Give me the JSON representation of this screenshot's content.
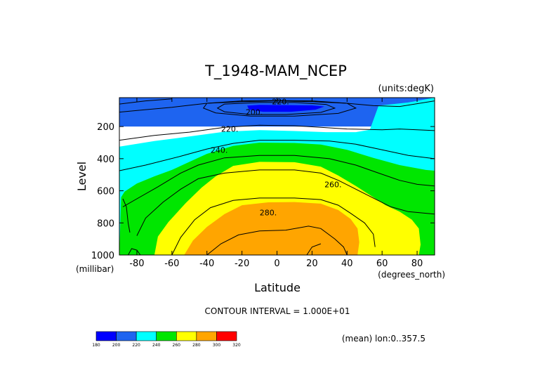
{
  "chart_data": {
    "type": "contour",
    "title": "T_1948-MAM_NCEP",
    "units_label": "(units:degK)",
    "xlabel": "Latitude",
    "ylabel": "Level",
    "x_unit_label": "(degrees_north)",
    "y_unit_label": "(millibar)",
    "xlim": [
      -90,
      90
    ],
    "ylim": [
      1000,
      20
    ],
    "y_inverted": true,
    "x_ticks": [
      -80,
      -60,
      -40,
      -20,
      0,
      20,
      40,
      60,
      80
    ],
    "x_tick_labels": [
      "-80",
      "-60",
      "-40",
      "-20",
      "0",
      "20",
      "40",
      "60",
      "80"
    ],
    "y_ticks": [
      200,
      400,
      600,
      800,
      1000
    ],
    "y_tick_labels": [
      "200",
      "400",
      "600",
      "800",
      "1000"
    ],
    "contour_interval_text": "CONTOUR INTERVAL = 1.000E+01",
    "footer_text": "(mean) lon:0..357.5",
    "contour_labels": [
      {
        "text": "220.",
        "lat": 2,
        "lev": 45
      },
      {
        "text": "200.",
        "lat": -13,
        "lev": 110
      },
      {
        "text": "220.",
        "lat": -27,
        "lev": 215
      },
      {
        "text": "240.",
        "lat": -33,
        "lev": 345
      },
      {
        "text": "260.",
        "lat": 32,
        "lev": 560
      },
      {
        "text": "280.",
        "lat": -5,
        "lev": 735
      }
    ],
    "colorbar": {
      "levels": [
        "180",
        "200",
        "220",
        "240",
        "260",
        "280",
        "300",
        "320"
      ],
      "colors": [
        "#0000ff",
        "#1e64f0",
        "#00ffff",
        "#00e600",
        "#ffff00",
        "#ffa500",
        "#ff0000"
      ]
    },
    "bands": [
      {
        "level": 200,
        "color": "#1e64f0",
        "points": [
          [
            -90,
            20
          ],
          [
            90,
            20
          ],
          [
            90,
            200
          ],
          [
            -90,
            200
          ]
        ]
      },
      {
        "level": 190,
        "color": "#0000ff",
        "points": [
          [
            -17,
            70
          ],
          [
            -10,
            65
          ],
          [
            20,
            68
          ],
          [
            27,
            75
          ],
          [
            22,
            95
          ],
          [
            8,
            108
          ],
          [
            -8,
            108
          ],
          [
            -16,
            95
          ]
        ]
      },
      {
        "level": 220,
        "color": "#00ffff",
        "points": [
          [
            -90,
            325
          ],
          [
            -70,
            290
          ],
          [
            -50,
            262
          ],
          [
            -30,
            232
          ],
          [
            -10,
            222
          ],
          [
            10,
            228
          ],
          [
            28,
            235
          ],
          [
            45,
            235
          ],
          [
            53,
            220
          ],
          [
            58,
            70
          ],
          [
            75,
            50
          ],
          [
            90,
            20
          ],
          [
            90,
            1000
          ],
          [
            -90,
            1000
          ]
        ]
      },
      {
        "level": 240,
        "color": "#00e600",
        "points": [
          [
            -90,
            1000
          ],
          [
            -89,
            640
          ],
          [
            -87,
            605
          ],
          [
            -80,
            555
          ],
          [
            -70,
            510
          ],
          [
            -60,
            470
          ],
          [
            -50,
            420
          ],
          [
            -40,
            370
          ],
          [
            -25,
            320
          ],
          [
            -10,
            300
          ],
          [
            10,
            302
          ],
          [
            25,
            312
          ],
          [
            40,
            345
          ],
          [
            55,
            395
          ],
          [
            70,
            440
          ],
          [
            85,
            470
          ],
          [
            90,
            475
          ],
          [
            90,
            1000
          ]
        ]
      },
      {
        "level": 260,
        "color": "#ffff00",
        "points": [
          [
            -70,
            1000
          ],
          [
            -68,
            885
          ],
          [
            -62,
            795
          ],
          [
            -52,
            675
          ],
          [
            -43,
            580
          ],
          [
            -35,
            510
          ],
          [
            -25,
            445
          ],
          [
            -10,
            420
          ],
          [
            10,
            422
          ],
          [
            25,
            450
          ],
          [
            35,
            505
          ],
          [
            45,
            570
          ],
          [
            55,
            640
          ],
          [
            62,
            690
          ],
          [
            70,
            730
          ],
          [
            77,
            780
          ],
          [
            81,
            835
          ],
          [
            82,
            935
          ],
          [
            81,
            1000
          ]
        ]
      },
      {
        "level": 270,
        "color": "#ffa500",
        "points": [
          [
            -53,
            1000
          ],
          [
            -48,
            910
          ],
          [
            -40,
            825
          ],
          [
            -30,
            745
          ],
          [
            -20,
            690
          ],
          [
            -5,
            672
          ],
          [
            10,
            670
          ],
          [
            25,
            680
          ],
          [
            35,
            720
          ],
          [
            42,
            775
          ],
          [
            46,
            835
          ],
          [
            47,
            920
          ],
          [
            46,
            1000
          ]
        ]
      }
    ],
    "lines": [
      {
        "level": 230,
        "points": [
          [
            -90,
            285
          ],
          [
            -70,
            255
          ],
          [
            -50,
            235
          ],
          [
            -30,
            205
          ],
          [
            -10,
            192
          ],
          [
            10,
            195
          ],
          [
            25,
            205
          ],
          [
            40,
            215
          ],
          [
            60,
            220
          ],
          [
            70,
            215
          ],
          [
            90,
            225
          ]
        ]
      },
      {
        "level": 230,
        "points": [
          [
            -90,
            475
          ],
          [
            -75,
            440
          ],
          [
            -55,
            385
          ],
          [
            -40,
            340
          ],
          [
            -25,
            305
          ],
          [
            -10,
            285
          ],
          [
            10,
            285
          ],
          [
            30,
            290
          ],
          [
            45,
            310
          ],
          [
            60,
            345
          ],
          [
            75,
            380
          ],
          [
            90,
            400
          ]
        ]
      },
      {
        "level": 250,
        "points": [
          [
            -88,
            700
          ],
          [
            -80,
            650
          ],
          [
            -68,
            575
          ],
          [
            -55,
            490
          ],
          [
            -45,
            440
          ],
          [
            -30,
            395
          ],
          [
            -10,
            380
          ],
          [
            10,
            380
          ],
          [
            30,
            400
          ],
          [
            45,
            440
          ],
          [
            58,
            490
          ],
          [
            70,
            535
          ],
          [
            80,
            560
          ],
          [
            90,
            570
          ]
        ]
      },
      {
        "level": 260,
        "points": [
          [
            -80,
            880
          ],
          [
            -75,
            770
          ],
          [
            -65,
            670
          ],
          [
            -55,
            590
          ],
          [
            -45,
            525
          ],
          [
            -30,
            490
          ],
          [
            -10,
            470
          ],
          [
            10,
            470
          ],
          [
            25,
            490
          ],
          [
            35,
            535
          ],
          [
            45,
            590
          ],
          [
            55,
            645
          ],
          [
            65,
            700
          ],
          [
            75,
            730
          ],
          [
            90,
            745
          ]
        ]
      },
      {
        "level": 270,
        "points": [
          [
            -60,
            1000
          ],
          [
            -55,
            890
          ],
          [
            -47,
            780
          ],
          [
            -38,
            705
          ],
          [
            -25,
            660
          ],
          [
            -10,
            645
          ],
          [
            10,
            645
          ],
          [
            25,
            655
          ],
          [
            35,
            690
          ],
          [
            42,
            740
          ],
          [
            50,
            800
          ],
          [
            55,
            870
          ],
          [
            56,
            950
          ]
        ]
      },
      {
        "level": 280,
        "points": [
          [
            -40,
            1000
          ],
          [
            -32,
            930
          ],
          [
            -22,
            875
          ],
          [
            -10,
            850
          ],
          [
            5,
            845
          ],
          [
            18,
            820
          ],
          [
            25,
            835
          ],
          [
            33,
            900
          ],
          [
            38,
            950
          ],
          [
            40,
            1000
          ]
        ]
      },
      {
        "level": 280,
        "points": [
          [
            17,
            1000
          ],
          [
            20,
            950
          ],
          [
            25,
            930
          ]
        ]
      },
      {
        "level": 210,
        "points": [
          [
            -40,
            55
          ],
          [
            -20,
            40
          ],
          [
            0,
            38
          ],
          [
            20,
            40
          ],
          [
            40,
            55
          ],
          [
            45,
            85
          ],
          [
            35,
            118
          ],
          [
            10,
            135
          ],
          [
            -15,
            135
          ],
          [
            -35,
            115
          ],
          [
            -42,
            85
          ],
          [
            -40,
            55
          ]
        ]
      },
      {
        "level": 200,
        "points": [
          [
            -30,
            60
          ],
          [
            -10,
            50
          ],
          [
            10,
            50
          ],
          [
            28,
            62
          ],
          [
            33,
            85
          ],
          [
            25,
            112
          ],
          [
            5,
            125
          ],
          [
            -15,
            125
          ],
          [
            -30,
            108
          ],
          [
            -34,
            85
          ],
          [
            -30,
            60
          ]
        ]
      },
      {
        "level": 220,
        "points": [
          [
            -90,
            110
          ],
          [
            -75,
            95
          ],
          [
            -60,
            80
          ],
          [
            -40,
            55
          ],
          [
            -20,
            45
          ],
          [
            0,
            40
          ],
          [
            20,
            45
          ],
          [
            40,
            55
          ],
          [
            55,
            70
          ],
          [
            70,
            75
          ],
          [
            90,
            40
          ]
        ]
      },
      {
        "level": 210,
        "points": [
          [
            -90,
            60
          ],
          [
            -75,
            40
          ],
          [
            -60,
            28
          ]
        ]
      },
      {
        "level": 270,
        "points": [
          [
            -85,
            1000
          ],
          [
            -83,
            960
          ],
          [
            -80,
            970
          ],
          [
            -78,
            1000
          ]
        ]
      },
      {
        "level": 230,
        "points": [
          [
            -88,
            650
          ],
          [
            -86,
            700
          ],
          [
            -85,
            800
          ],
          [
            -84,
            860
          ]
        ]
      }
    ]
  }
}
